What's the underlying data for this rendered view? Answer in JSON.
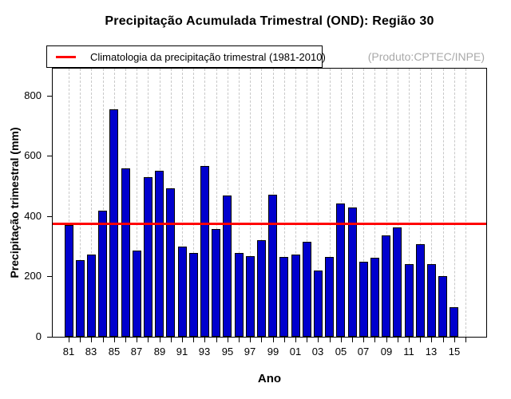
{
  "title": "Precipitação Acumulada Trimestral (OND): Região 30",
  "watermark": "(Produto:CPTEC/INPE)",
  "legend": {
    "label": "Climatologia da precipitação trimestral (1981-2010)",
    "line_color": "#ff0000"
  },
  "axes": {
    "x_label": "Ano",
    "y_label": "Precipitação trimestral (mm)",
    "x_tick_labels_shown": [
      "81",
      "83",
      "85",
      "87",
      "89",
      "91",
      "93",
      "95",
      "97",
      "99",
      "01",
      "03",
      "05",
      "07",
      "09",
      "11",
      "13",
      "15"
    ]
  },
  "chart_data": {
    "type": "bar",
    "x_years": [
      1981,
      1982,
      1983,
      1984,
      1985,
      1986,
      1987,
      1988,
      1989,
      1990,
      1991,
      1992,
      1993,
      1994,
      1995,
      1996,
      1997,
      1998,
      1999,
      2000,
      2001,
      2002,
      2003,
      2004,
      2005,
      2006,
      2007,
      2008,
      2009,
      2010,
      2011,
      2012,
      2013,
      2014,
      2015
    ],
    "values": [
      370,
      255,
      272,
      418,
      755,
      560,
      287,
      531,
      552,
      493,
      298,
      279,
      568,
      357,
      468,
      279,
      268,
      321,
      471,
      265,
      273,
      314,
      221,
      266,
      442,
      430,
      249,
      262,
      336,
      363,
      241,
      306,
      242,
      201,
      98
    ],
    "axis_extra_years": [
      2016
    ],
    "y_ticks": [
      0,
      200,
      400,
      600,
      800
    ],
    "ylim": [
      0,
      890
    ],
    "climatology_mm": 375,
    "title": "Precipitação Acumulada Trimestral (OND): Região 30",
    "xlabel": "Ano",
    "ylabel": "Precipitação trimestral (mm)",
    "legend_entry": "Climatologia da precipitação trimestral (1981-2010)",
    "bar_color": "#0000cd",
    "bar_border_color": "#000000",
    "line_color": "#ff0000",
    "grid_color": "#c8c8c8",
    "grid": "vertical-dashed",
    "legend_position": "top-left"
  }
}
